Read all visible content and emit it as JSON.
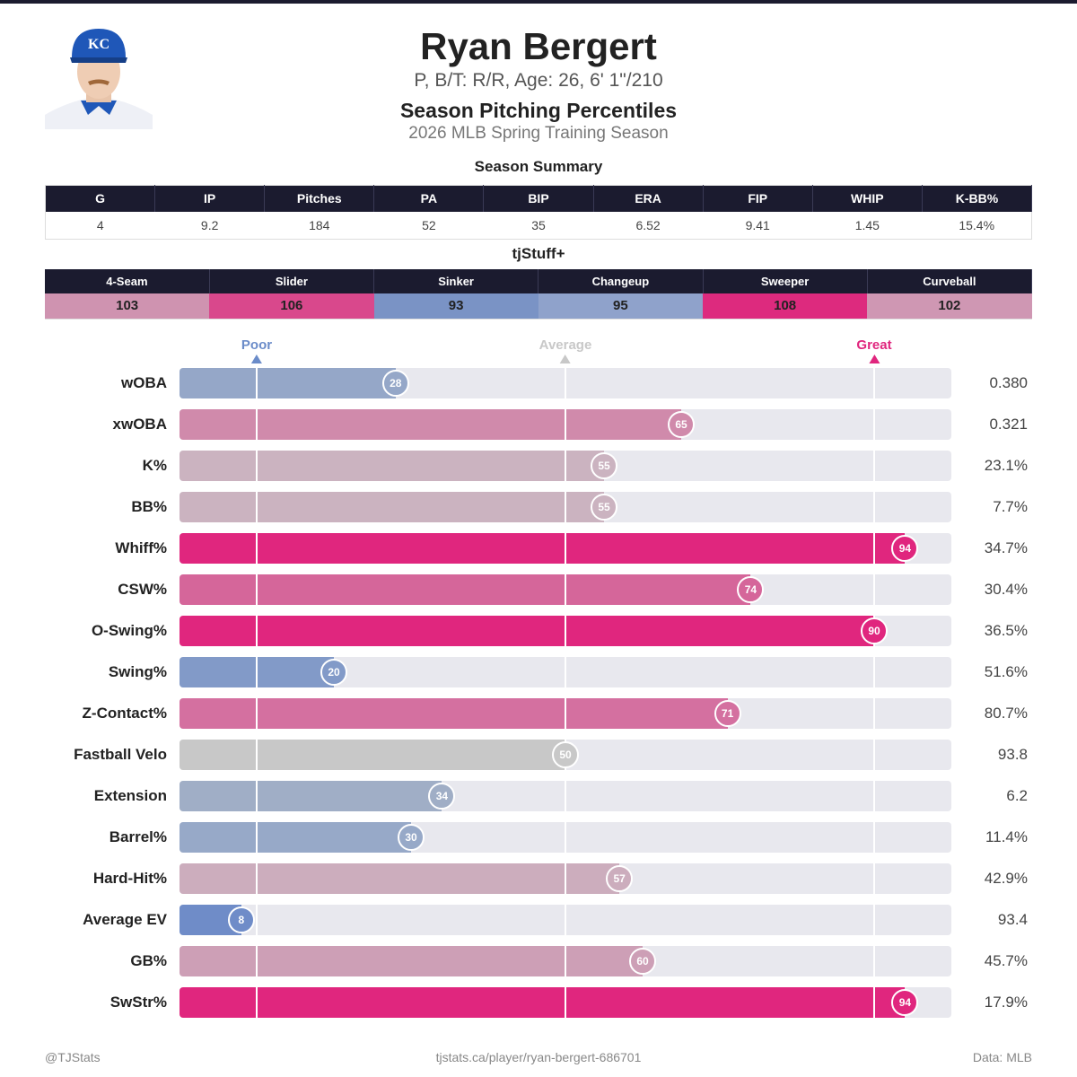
{
  "header": {
    "name": "Ryan Bergert",
    "info": "P, B/T: R/R, Age: 26, 6' 1\"/210",
    "subtitle": "Season Pitching Percentiles",
    "season": "2026 MLB Spring Training Season",
    "photo_cap_logo": "KC"
  },
  "summary": {
    "title": "Season Summary",
    "columns": [
      "G",
      "IP",
      "Pitches",
      "PA",
      "BIP",
      "ERA",
      "FIP",
      "WHIP",
      "K-BB%"
    ],
    "values": [
      "4",
      "9.2",
      "184",
      "52",
      "35",
      "6.52",
      "9.41",
      "1.45",
      "15.4%"
    ]
  },
  "tjstuff": {
    "title": "tjStuff+",
    "columns": [
      "4-Seam",
      "Slider",
      "Sinker",
      "Changeup",
      "Sweeper",
      "Curveball"
    ],
    "values": [
      "103",
      "106",
      "93",
      "95",
      "108",
      "102"
    ],
    "colors": [
      "#cf93b0",
      "#d9488c",
      "#7a93c5",
      "#8fa2cb",
      "#dd2a7e",
      "#cf97b3"
    ]
  },
  "chart_data": {
    "type": "bar",
    "orientation": "horizontal",
    "xlim": [
      0,
      100
    ],
    "markers": [
      {
        "label": "Poor",
        "value": 10,
        "color": "#6b8cc9"
      },
      {
        "label": "Average",
        "value": 50,
        "color": "#c8c8c8"
      },
      {
        "label": "Great",
        "value": 90,
        "color": "#e0267e"
      }
    ],
    "categories": [
      "wOBA",
      "xwOBA",
      "K%",
      "BB%",
      "Whiff%",
      "CSW%",
      "O-Swing%",
      "Swing%",
      "Z-Contact%",
      "Fastball Velo",
      "Extension",
      "Barrel%",
      "Hard-Hit%",
      "Average EV",
      "GB%",
      "SwStr%"
    ],
    "percentiles": [
      28,
      65,
      55,
      55,
      94,
      74,
      90,
      20,
      71,
      50,
      34,
      30,
      57,
      8,
      60,
      94
    ],
    "stat_values": [
      "0.380",
      "0.321",
      "23.1%",
      "7.7%",
      "34.7%",
      "30.4%",
      "36.5%",
      "51.6%",
      "80.7%",
      "93.8",
      "6.2",
      "11.4%",
      "42.9%",
      "93.4",
      "45.7%",
      "17.9%"
    ],
    "colors": [
      "#95a7c8",
      "#d08aab",
      "#cbb3c0",
      "#cbb3c0",
      "#e0267e",
      "#d5669a",
      "#e0267e",
      "#829ac8",
      "#d470a0",
      "#c8c8c8",
      "#a0aec6",
      "#97a9c8",
      "#ccadbd",
      "#6f8cc8",
      "#cd9fb6",
      "#e0267e"
    ]
  },
  "footer": {
    "left": "@TJStats",
    "center": "tjstats.ca/player/ryan-bergert-686701",
    "right": "Data: MLB"
  }
}
